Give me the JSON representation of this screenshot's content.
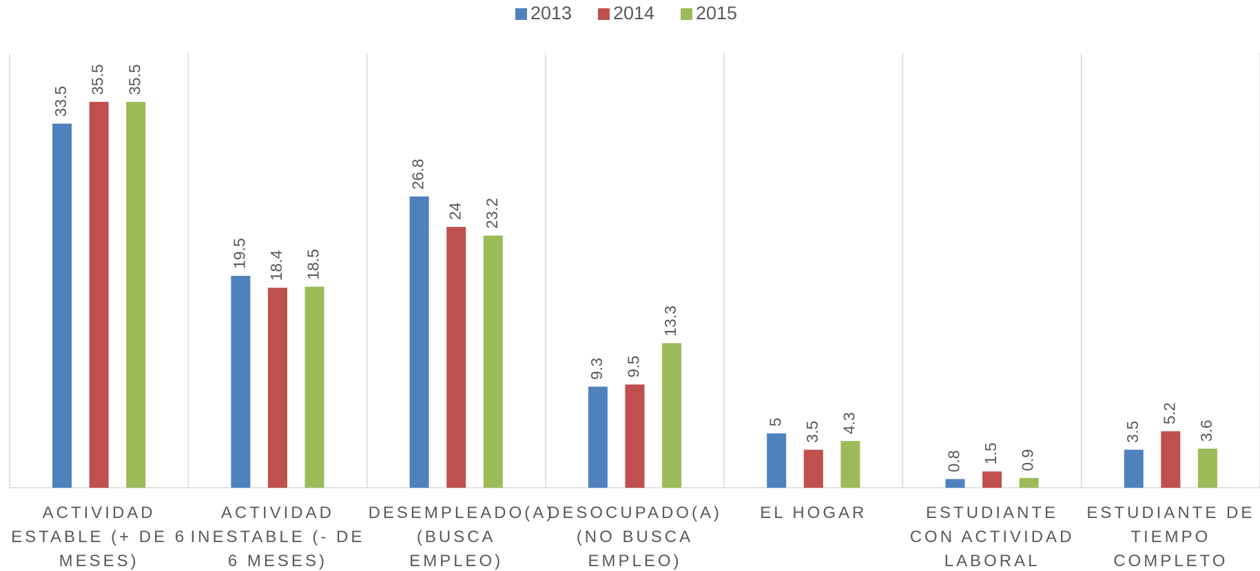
{
  "chart_data": {
    "type": "bar",
    "categories": [
      "ACTIVIDAD ESTABLE (+ DE 6 MESES)",
      "ACTIVIDAD INESTABLE (- DE 6 MESES)",
      "DESEMPLEADO(A) (BUSCA EMPLEO)",
      "DESOCUPADO(A) (NO BUSCA EMPLEO)",
      "EL HOGAR",
      "ESTUDIANTE CON ACTIVIDAD LABORAL",
      "ESTUDIANTE DE TIEMPO COMPLETO"
    ],
    "series": [
      {
        "name": "2013",
        "color": "#4f81bd",
        "values": [
          33.5,
          19.5,
          26.8,
          9.3,
          5,
          0.8,
          3.5
        ]
      },
      {
        "name": "2014",
        "color": "#c0504d",
        "values": [
          35.5,
          18.4,
          24,
          9.5,
          3.5,
          1.5,
          5.2
        ]
      },
      {
        "name": "2015",
        "color": "#9bbb59",
        "values": [
          35.5,
          18.5,
          23.2,
          13.3,
          4.3,
          0.9,
          3.6
        ]
      }
    ],
    "ylim": [
      0,
      40
    ],
    "legend": "top"
  }
}
